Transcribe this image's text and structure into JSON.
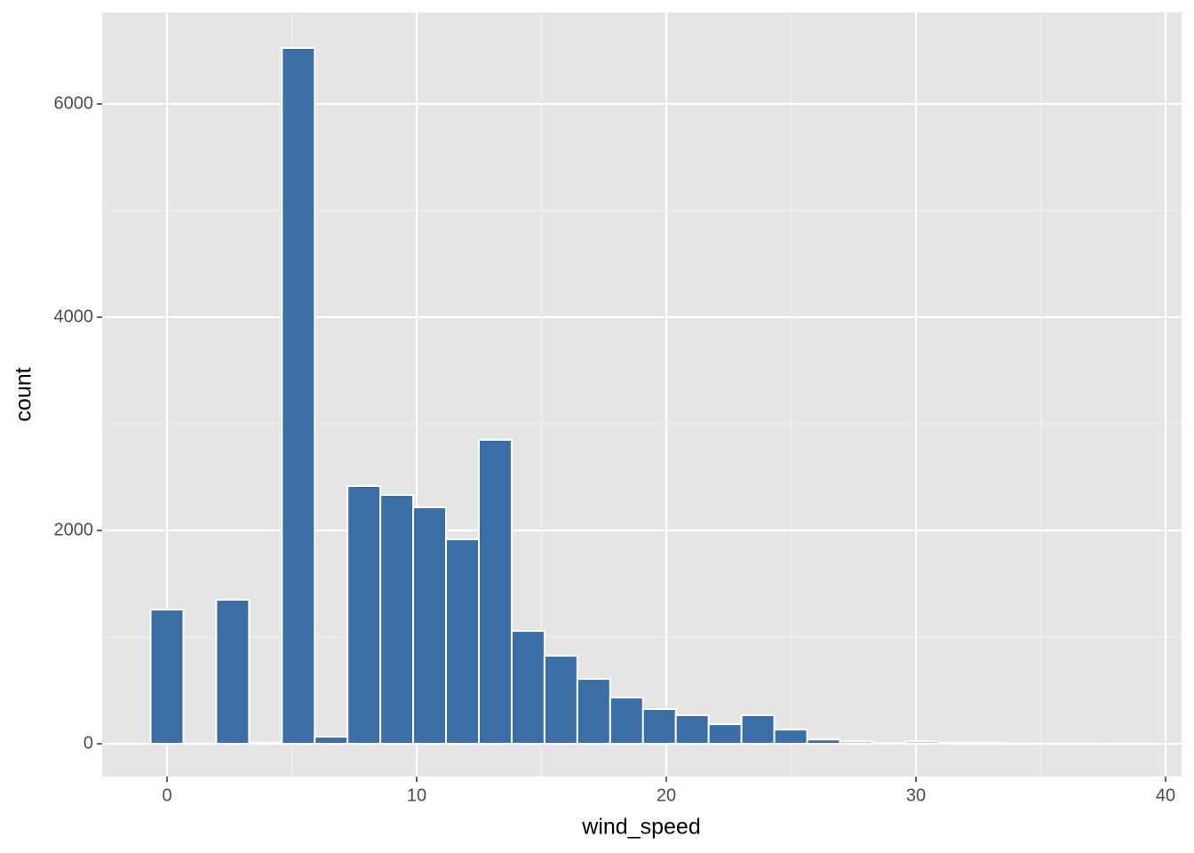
{
  "chart_data": {
    "type": "histogram",
    "x_label": "wind_speed",
    "y_label": "count",
    "bins": [
      -0.66,
      0.655,
      1.97,
      3.285,
      4.6,
      5.915,
      7.23,
      8.545,
      9.86,
      11.175,
      12.49,
      13.805,
      15.12,
      16.435,
      17.75,
      19.065,
      20.38,
      21.695,
      23.01,
      24.325,
      25.64,
      26.955,
      28.27,
      29.585,
      30.9,
      32.215,
      33.53,
      34.845,
      36.16,
      37.475,
      38.79
    ],
    "values": [
      1258,
      0,
      1350,
      10,
      6525,
      66,
      2417,
      2333,
      2217,
      1917,
      2850,
      1058,
      825,
      608,
      433,
      325,
      267,
      183,
      267,
      133,
      40,
      20,
      5,
      20,
      10,
      10,
      3,
      3,
      2,
      2
    ],
    "color": "#3a6ea5",
    "xlim": [
      -2.6,
      40.64
    ],
    "ylim": [
      -308,
      6858
    ],
    "xticks": [
      0,
      10,
      20,
      30,
      40
    ],
    "yticks": [
      0,
      2000,
      4000,
      6000
    ],
    "xminor": [
      5,
      15,
      25,
      35
    ],
    "yminor": [
      1000,
      3000,
      5000
    ],
    "grid": true
  }
}
